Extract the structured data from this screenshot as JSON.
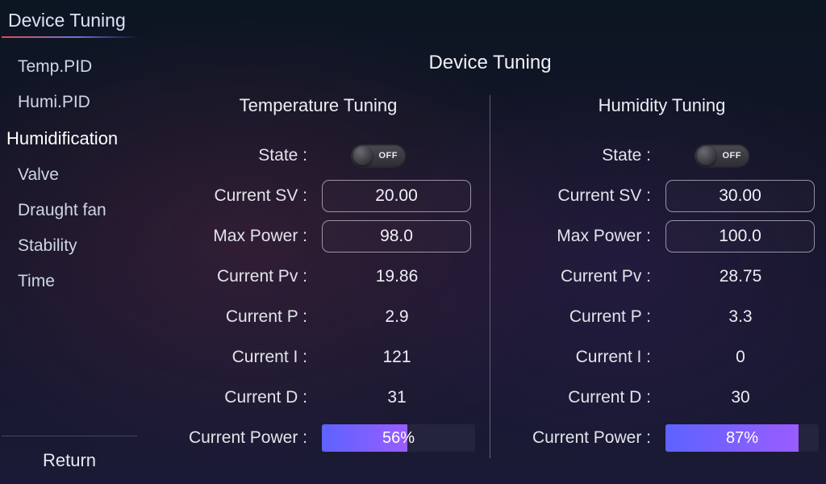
{
  "colors": {
    "text": "#e8e8ec",
    "underline_start": "#ff5050",
    "underline_end": "#7882ff",
    "field_border": "#d2d6e4",
    "power_grad_start": "#5d63ff",
    "power_grad_end": "#9a5cff",
    "divider": "#c8cddc"
  },
  "sidebar": {
    "title": "Device Tuning",
    "items": [
      {
        "label": "Temp.PID",
        "active": false
      },
      {
        "label": "Humi.PID",
        "active": false
      },
      {
        "label": "Humidification",
        "active": true
      },
      {
        "label": "Valve",
        "active": false
      },
      {
        "label": "Draught fan",
        "active": false
      },
      {
        "label": "Stability",
        "active": false
      },
      {
        "label": "Time",
        "active": false
      }
    ],
    "return_label": "Return"
  },
  "main": {
    "title": "Device Tuning",
    "labels": {
      "state": "State :",
      "current_sv": "Current SV :",
      "max_power": "Max Power :",
      "current_pv": "Current Pv :",
      "current_p": "Current P :",
      "current_i": "Current I :",
      "current_d": "Current D :",
      "current_power": "Current Power :",
      "toggle_off": "OFF"
    },
    "panels": {
      "temperature": {
        "title": "Temperature Tuning",
        "state": "OFF",
        "current_sv": "20.00",
        "max_power": "98.0",
        "current_pv": "19.86",
        "current_p": "2.9",
        "current_i": "121",
        "current_d": "31",
        "current_power_pct": 56,
        "current_power_text": "56%"
      },
      "humidity": {
        "title": "Humidity Tuning",
        "state": "OFF",
        "current_sv": "30.00",
        "max_power": "100.0",
        "current_pv": "28.75",
        "current_p": "3.3",
        "current_i": "0",
        "current_d": "30",
        "current_power_pct": 87,
        "current_power_text": "87%"
      }
    }
  }
}
